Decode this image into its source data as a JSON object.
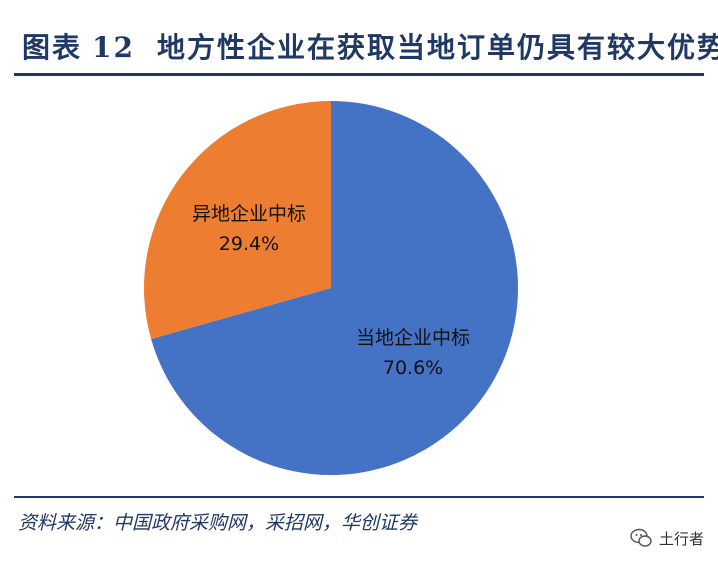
{
  "title": {
    "prefix": "图表",
    "number": "12",
    "text": "地方性企业在获取当地订单仍具有较大优势"
  },
  "source": "资料来源：中国政府采购网，采招网，华创证券",
  "watermark": {
    "icon": "wechat-icon",
    "text": "土行者"
  },
  "colors": {
    "local": "#4472c4",
    "nonlocal": "#ed7d31",
    "title": "#1f3864"
  },
  "chart_data": {
    "type": "pie",
    "slices": [
      {
        "label": "当地企业中标",
        "value": 70.6,
        "value_label": "70.6%",
        "color": "#4472c4"
      },
      {
        "label": "异地企业中标",
        "value": 29.4,
        "value_label": "29.4%",
        "color": "#ed7d31"
      }
    ],
    "start_angle": "12-o'clock",
    "direction": "clockwise",
    "legend": "none"
  }
}
